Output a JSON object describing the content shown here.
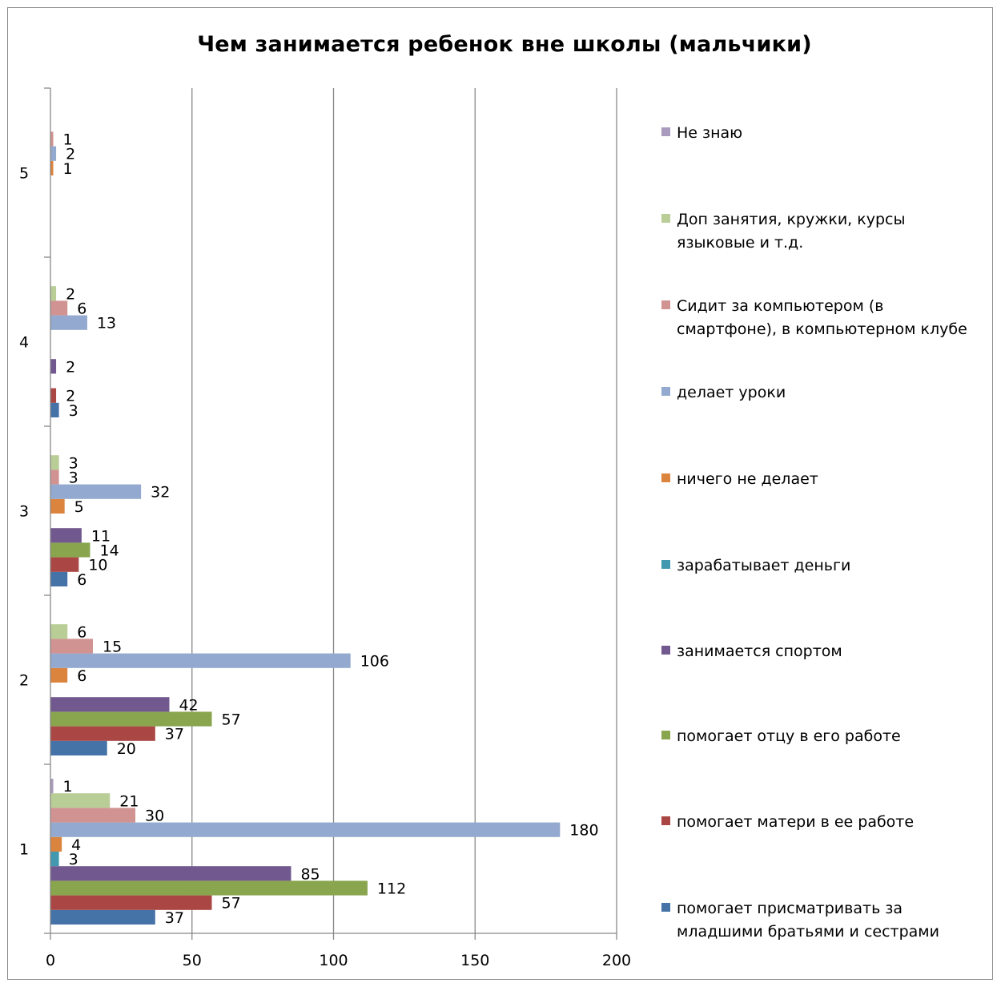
{
  "chart_data": {
    "type": "bar",
    "orientation": "horizontal",
    "title": "Чем занимается ребенок вне школы (мальчики)",
    "xlabel": "",
    "ylabel": "",
    "xlim": [
      0,
      200
    ],
    "x_ticks": [
      "0",
      "50",
      "100",
      "150",
      "200"
    ],
    "categories": [
      "1",
      "2",
      "3",
      "4",
      "5"
    ],
    "grid": "vertical",
    "legend_position": "right",
    "series": [
      {
        "name": "помогает присматривать за младшими братьями и сестрами",
        "color": "#4572a7",
        "values": [
          37,
          20,
          6,
          3,
          null
        ]
      },
      {
        "name": "помогает матери в ее работе",
        "color": "#aa4643",
        "values": [
          57,
          37,
          10,
          2,
          null
        ]
      },
      {
        "name": "помогает отцу в его работе",
        "color": "#89a54e",
        "values": [
          112,
          57,
          14,
          null,
          null
        ]
      },
      {
        "name": "занимается спортом",
        "color": "#71588f",
        "values": [
          85,
          42,
          11,
          2,
          null
        ]
      },
      {
        "name": "зарабатывает деньги",
        "color": "#4198af",
        "values": [
          3,
          null,
          null,
          null,
          null
        ]
      },
      {
        "name": "ничего не делает",
        "color": "#db843d",
        "values": [
          4,
          6,
          5,
          null,
          1
        ]
      },
      {
        "name": "делает уроки",
        "color": "#93a9cf",
        "values": [
          180,
          106,
          32,
          13,
          2
        ]
      },
      {
        "name": "Сидит за компьютером (в смартфоне), в компьютерном клубе",
        "color": "#d19392",
        "values": [
          30,
          15,
          3,
          6,
          1
        ]
      },
      {
        "name": "Доп занятия, кружки, курсы языковые и т.д.",
        "color": "#b9cd96",
        "values": [
          21,
          6,
          3,
          2,
          null
        ]
      },
      {
        "name": "Не знаю",
        "color": "#a99bbd",
        "values": [
          1,
          null,
          null,
          null,
          null
        ]
      }
    ]
  }
}
